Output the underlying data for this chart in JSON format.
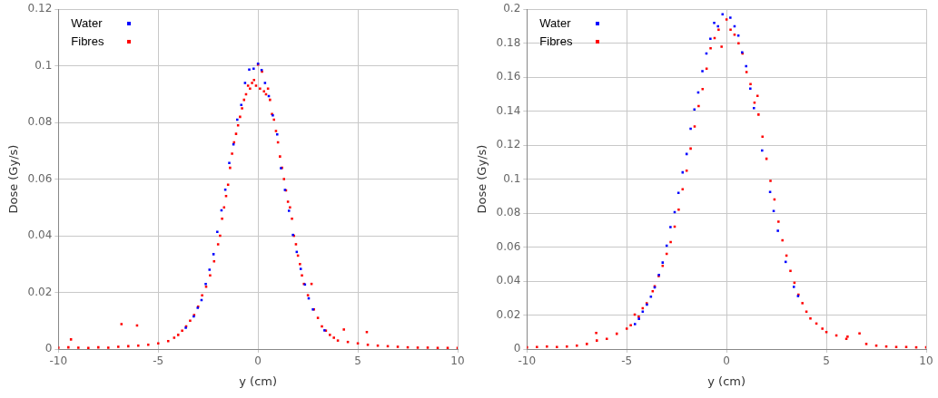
{
  "chart_data": [
    {
      "type": "scatter",
      "xlabel": "y (cm)",
      "ylabel": "Dose (Gy/s)",
      "xlim": [
        -10,
        10
      ],
      "xticks": [
        -10,
        -5,
        0,
        5,
        10
      ],
      "ylim": [
        0,
        0.12
      ],
      "yticks": [
        0,
        0.02,
        0.04,
        0.06,
        0.08,
        0.1,
        0.12
      ],
      "grid": true,
      "legend": "top left",
      "marker": "square",
      "series": [
        {
          "name": "Water",
          "color": "#0000ff",
          "x": [
            -3.62,
            -3.22,
            -3.02,
            -2.83,
            -2.62,
            -2.43,
            -2.23,
            -2.04,
            -1.83,
            -1.64,
            -1.44,
            -1.23,
            -1.04,
            -0.84,
            -0.65,
            -0.44,
            -0.22,
            0,
            0.18,
            0.35,
            0.54,
            0.74,
            0.96,
            1.15,
            1.35,
            1.55,
            1.75,
            1.94,
            2.14,
            2.35,
            2.54,
            2.75,
            3.33
          ],
          "values": [
            0.0075,
            0.0115,
            0.0146,
            0.0173,
            0.023,
            0.028,
            0.0335,
            0.0414,
            0.049,
            0.0563,
            0.0657,
            0.0723,
            0.081,
            0.0862,
            0.094,
            0.0987,
            0.099,
            0.1008,
            0.0985,
            0.094,
            0.0893,
            0.0825,
            0.0758,
            0.0639,
            0.0562,
            0.0488,
            0.0403,
            0.0343,
            0.0283,
            0.0228,
            0.0179,
            0.014,
            0.0066
          ]
        },
        {
          "name": "Fibres",
          "color": "#ff0000",
          "x": [
            -10,
            -9.5,
            -9.37,
            -9,
            -8.5,
            -8,
            -7.5,
            -7,
            -6.84,
            -6.5,
            -6.06,
            -6,
            -5.5,
            -5,
            -4.5,
            -4.2,
            -4,
            -3.8,
            -3.6,
            -3.4,
            -3.2,
            -3,
            -2.8,
            -2.6,
            -2.4,
            -2.2,
            -2,
            -1.9,
            -1.8,
            -1.7,
            -1.6,
            -1.5,
            -1.4,
            -1.3,
            -1.2,
            -1.1,
            -1,
            -0.9,
            -0.8,
            -0.7,
            -0.6,
            -0.5,
            -0.4,
            -0.3,
            -0.2,
            -0.1,
            0,
            0.1,
            0.2,
            0.3,
            0.4,
            0.5,
            0.6,
            0.7,
            0.8,
            0.9,
            1,
            1.1,
            1.2,
            1.3,
            1.4,
            1.5,
            1.6,
            1.7,
            1.8,
            1.9,
            2,
            2.1,
            2.2,
            2.3,
            2.5,
            2.68,
            2.8,
            3,
            3.2,
            3.4,
            3.6,
            3.8,
            4,
            4.3,
            4.5,
            5,
            5.45,
            5.5,
            6,
            6.5,
            7,
            7.5,
            8,
            8.5,
            9,
            9.5,
            10
          ],
          "values": [
            0.0005,
            0.0006,
            0.0034,
            0.0005,
            0.0004,
            0.0006,
            0.0005,
            0.0008,
            0.0088,
            0.001,
            0.0083,
            0.0012,
            0.0015,
            0.002,
            0.0028,
            0.004,
            0.005,
            0.0065,
            0.008,
            0.01,
            0.012,
            0.015,
            0.019,
            0.022,
            0.026,
            0.031,
            0.037,
            0.04,
            0.046,
            0.05,
            0.054,
            0.058,
            0.064,
            0.069,
            0.073,
            0.076,
            0.079,
            0.082,
            0.085,
            0.088,
            0.09,
            0.093,
            0.092,
            0.094,
            0.095,
            0.093,
            0.1005,
            0.092,
            0.098,
            0.091,
            0.09,
            0.092,
            0.088,
            0.083,
            0.081,
            0.077,
            0.073,
            0.068,
            0.064,
            0.06,
            0.056,
            0.052,
            0.05,
            0.046,
            0.04,
            0.037,
            0.033,
            0.03,
            0.026,
            0.023,
            0.019,
            0.023,
            0.014,
            0.011,
            0.008,
            0.0065,
            0.005,
            0.004,
            0.003,
            0.0069,
            0.0025,
            0.002,
            0.006,
            0.0015,
            0.0012,
            0.001,
            0.0008,
            0.0006,
            0.0005,
            0.0005,
            0.0004,
            0.0004,
            0.0004
          ]
        }
      ]
    },
    {
      "type": "scatter",
      "xlabel": "y (cm)",
      "ylabel": "Dose (Gy/s)",
      "xlim": [
        -10,
        10
      ],
      "xticks": [
        -10,
        -5,
        0,
        5,
        10
      ],
      "ylim": [
        0,
        0.2
      ],
      "yticks": [
        0,
        0.02,
        0.04,
        0.06,
        0.08,
        0.1,
        0.12,
        0.14,
        0.16,
        0.18,
        0.2
      ],
      "grid": true,
      "legend": "top left",
      "marker": "square",
      "series": [
        {
          "name": "Water",
          "color": "#0000ff",
          "x": [
            -4.59,
            -4.39,
            -4.2,
            -3.99,
            -3.79,
            -3.6,
            -3.39,
            -3.2,
            -3,
            -2.81,
            -2.6,
            -2.41,
            -2.2,
            -2,
            -1.8,
            -1.61,
            -1.42,
            -1.21,
            -1.01,
            -0.81,
            -0.62,
            -0.43,
            -0.2,
            0.19,
            0.4,
            0.59,
            0.78,
            0.98,
            1.19,
            1.37,
            1.78,
            2.18,
            2.36,
            2.57,
            2.96,
            3.37,
            3.58
          ],
          "values": [
            0.0147,
            0.0178,
            0.022,
            0.0262,
            0.0308,
            0.0363,
            0.0436,
            0.0509,
            0.0608,
            0.0718,
            0.0806,
            0.0919,
            0.104,
            0.1148,
            0.1297,
            0.141,
            0.151,
            0.1636,
            0.174,
            0.1826,
            0.192,
            0.19,
            0.197,
            0.195,
            0.19,
            0.1845,
            0.1746,
            0.1665,
            0.1533,
            0.1418,
            0.1169,
            0.0925,
            0.0812,
            0.0696,
            0.0513,
            0.0366,
            0.0312
          ]
        },
        {
          "name": "Fibres",
          "color": "#ff0000",
          "x": [
            -10,
            -9.5,
            -9,
            -8.5,
            -8,
            -7.5,
            -7,
            -6.53,
            -6.5,
            -6,
            -5.5,
            -5,
            -4.8,
            -4.6,
            -4.4,
            -4.2,
            -4,
            -3.7,
            -3.6,
            -3.4,
            -3.2,
            -3,
            -2.8,
            -2.6,
            -2.4,
            -2.2,
            -2,
            -1.8,
            -1.6,
            -1.4,
            -1.2,
            -1,
            -0.8,
            -0.6,
            -0.4,
            -0.25,
            0,
            0.2,
            0.4,
            0.6,
            0.8,
            1,
            1.2,
            1.4,
            1.55,
            1.6,
            1.8,
            2,
            2.2,
            2.4,
            2.6,
            2.8,
            3,
            3.2,
            3.4,
            3.6,
            3.8,
            4,
            4.2,
            4.5,
            4.8,
            5,
            5.5,
            6,
            6.06,
            6.66,
            7,
            7.5,
            8,
            8.5,
            9,
            9.5,
            10
          ],
          "values": [
            0.001,
            0.0012,
            0.0015,
            0.0012,
            0.0015,
            0.002,
            0.003,
            0.0095,
            0.005,
            0.006,
            0.009,
            0.012,
            0.014,
            0.0203,
            0.019,
            0.024,
            0.027,
            0.034,
            0.037,
            0.043,
            0.049,
            0.056,
            0.063,
            0.072,
            0.082,
            0.094,
            0.105,
            0.118,
            0.131,
            0.143,
            0.153,
            0.165,
            0.177,
            0.183,
            0.188,
            0.178,
            0.194,
            0.188,
            0.185,
            0.18,
            0.174,
            0.163,
            0.156,
            0.145,
            0.149,
            0.138,
            0.125,
            0.112,
            0.099,
            0.088,
            0.075,
            0.064,
            0.055,
            0.046,
            0.039,
            0.032,
            0.027,
            0.022,
            0.018,
            0.015,
            0.012,
            0.01,
            0.008,
            0.006,
            0.0073,
            0.0092,
            0.003,
            0.002,
            0.0015,
            0.0012,
            0.0012,
            0.001,
            0.001
          ]
        }
      ]
    }
  ]
}
